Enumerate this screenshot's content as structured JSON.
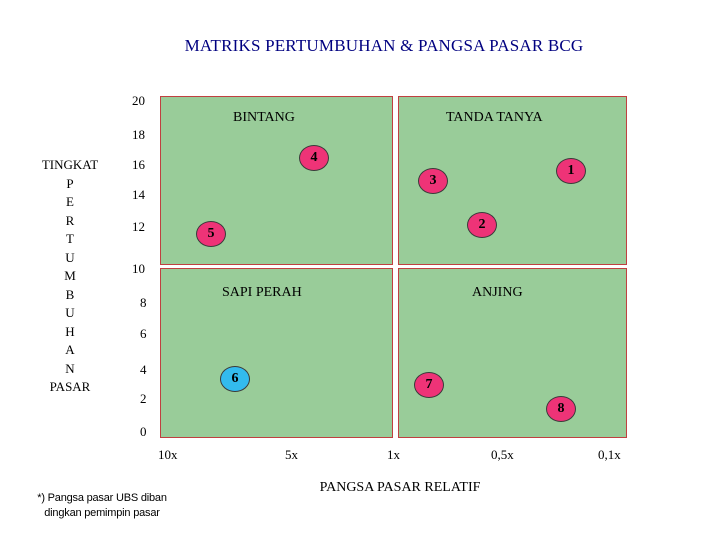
{
  "title": "MATRIKS PERTUMBUHAN & PANGSA PASAR BCG",
  "y_axis_label": [
    "TINGKAT",
    "P",
    "E",
    "R",
    "T",
    "U",
    "M",
    "B",
    "U",
    "H",
    "A",
    "N",
    "PASAR"
  ],
  "y_ticks": [
    "20",
    "18",
    "16",
    "14",
    "12",
    "10",
    "8",
    "6",
    "4",
    "2",
    "0"
  ],
  "x_ticks": [
    "10x",
    "5x",
    "1x",
    "0,5x",
    "0,1x"
  ],
  "x_axis_label": "PANGSA PASAR RELATIF",
  "quadrants": {
    "top_left": "BINTANG",
    "top_right": "TANDA TANYA",
    "bottom_left": "SAPI PERAH",
    "bottom_right": "ANJING"
  },
  "items": [
    {
      "label": "1",
      "color": "#ee3377"
    },
    {
      "label": "2",
      "color": "#ee3377"
    },
    {
      "label": "3",
      "color": "#ee3377"
    },
    {
      "label": "4",
      "color": "#ee3377"
    },
    {
      "label": "5",
      "color": "#ee3377"
    },
    {
      "label": "6",
      "color": "#33bbee"
    },
    {
      "label": "7",
      "color": "#ee3377"
    },
    {
      "label": "8",
      "color": "#ee3377"
    }
  ],
  "footnote": [
    "*) Pangsa pasar UBS diban",
    "dingkan pemimpin pasar"
  ],
  "colors": {
    "quadrant_fill": "#99cc99",
    "quadrant_border": "#c04040",
    "title": "#000080"
  }
}
